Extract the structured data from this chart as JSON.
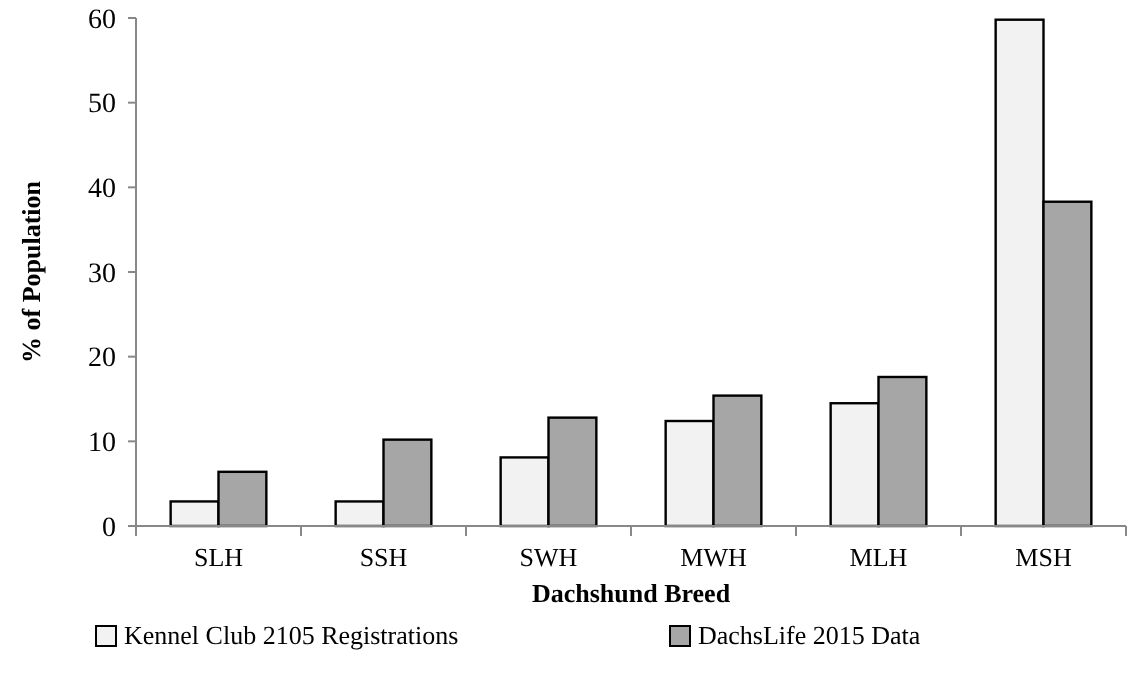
{
  "chart_data": {
    "type": "bar",
    "xlabel": "Dachshund  Breed",
    "ylabel": "% of Population",
    "categories": [
      "SLH",
      "SSH",
      "SWH",
      "MWH",
      "MLH",
      "MSH"
    ],
    "series": [
      {
        "name": "Kennel Club 2105 Registrations",
        "color": "#f2f2f2",
        "values": [
          2.9,
          2.9,
          8.1,
          12.4,
          14.5,
          59.8
        ]
      },
      {
        "name": "DachsLife 2015 Data",
        "color": "#a6a6a6",
        "values": [
          6.4,
          10.2,
          12.8,
          15.4,
          17.6,
          38.3
        ]
      }
    ],
    "ylim": [
      0,
      60
    ],
    "yticks": [
      0,
      10,
      20,
      30,
      40,
      50,
      60
    ],
    "legend": "bottom"
  }
}
